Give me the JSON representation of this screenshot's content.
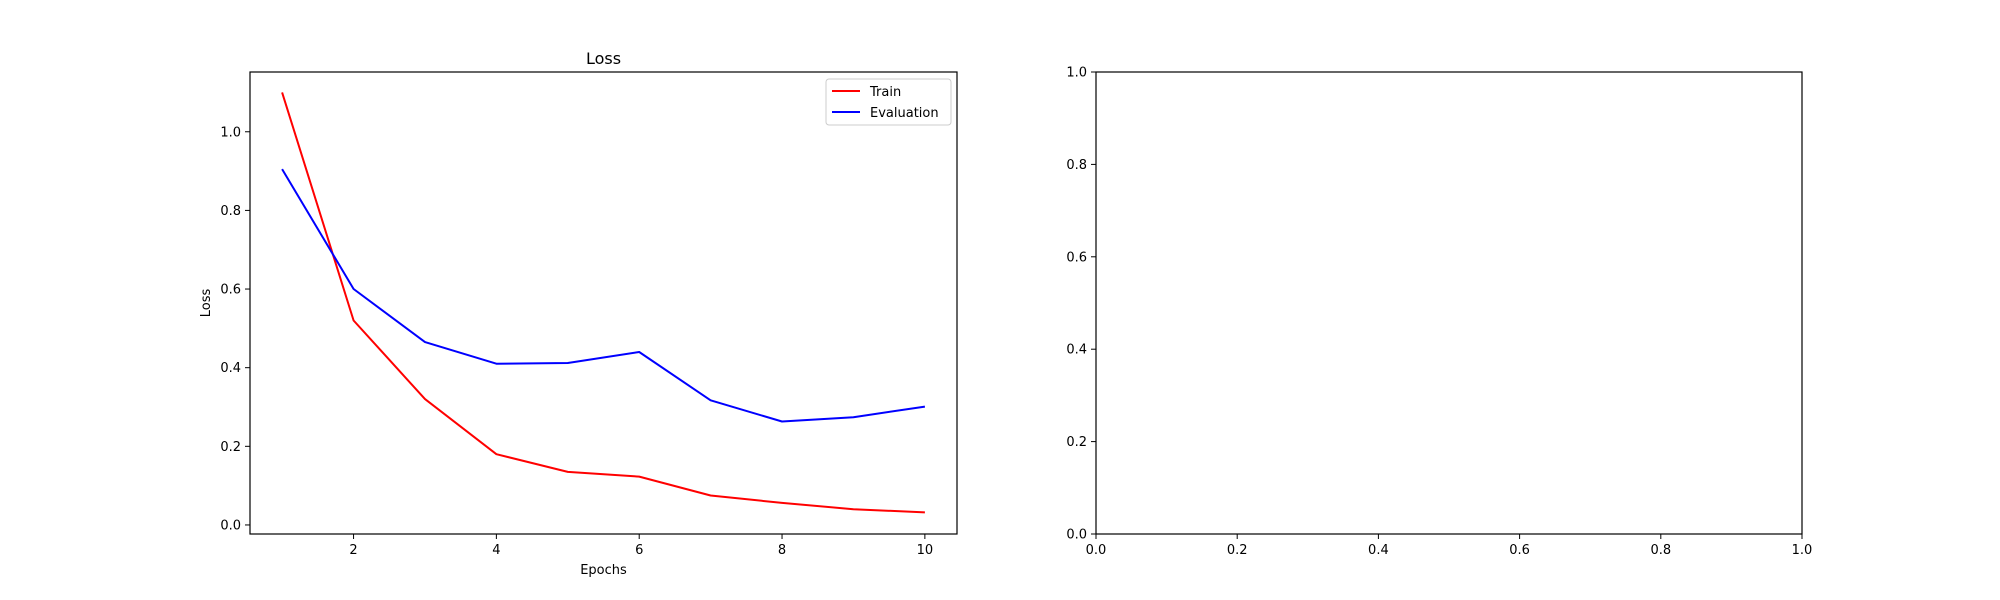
{
  "chart_data": [
    {
      "type": "line",
      "title": "Loss",
      "xlabel": "Epochs",
      "ylabel": "Loss",
      "x": [
        1,
        2,
        3,
        4,
        5,
        6,
        7,
        8,
        9,
        10
      ],
      "series": [
        {
          "name": "Train",
          "color": "#ff0000",
          "values": [
            1.1,
            0.52,
            0.32,
            0.18,
            0.135,
            0.123,
            0.075,
            0.056,
            0.04,
            0.032
          ]
        },
        {
          "name": "Evaluation",
          "color": "#0000ff",
          "values": [
            0.905,
            0.6,
            0.465,
            0.41,
            0.412,
            0.44,
            0.317,
            0.263,
            0.274,
            0.301
          ]
        }
      ],
      "xlim": [
        0.55,
        10.45
      ],
      "ylim": [
        -0.023,
        1.152
      ],
      "xticks": [
        2,
        4,
        6,
        8,
        10
      ],
      "yticks": [
        0.0,
        0.2,
        0.4,
        0.6,
        0.8,
        1.0
      ],
      "xtick_labels": [
        "2",
        "4",
        "6",
        "8",
        "10"
      ],
      "ytick_labels": [
        "0.0",
        "0.2",
        "0.4",
        "0.6",
        "0.8",
        "1.0"
      ],
      "legend_position": "top-right",
      "grid": false
    },
    {
      "type": "line",
      "title": "",
      "xlabel": "",
      "ylabel": "",
      "series": [],
      "xlim": [
        0.0,
        1.0
      ],
      "ylim": [
        0.0,
        1.0
      ],
      "xticks": [
        0.0,
        0.2,
        0.4,
        0.6,
        0.8,
        1.0
      ],
      "yticks": [
        0.0,
        0.2,
        0.4,
        0.6,
        0.8,
        1.0
      ],
      "xtick_labels": [
        "0.0",
        "0.2",
        "0.4",
        "0.6",
        "0.8",
        "1.0"
      ],
      "ytick_labels": [
        "0.0",
        "0.2",
        "0.4",
        "0.6",
        "0.8",
        "1.0"
      ],
      "grid": false
    }
  ]
}
